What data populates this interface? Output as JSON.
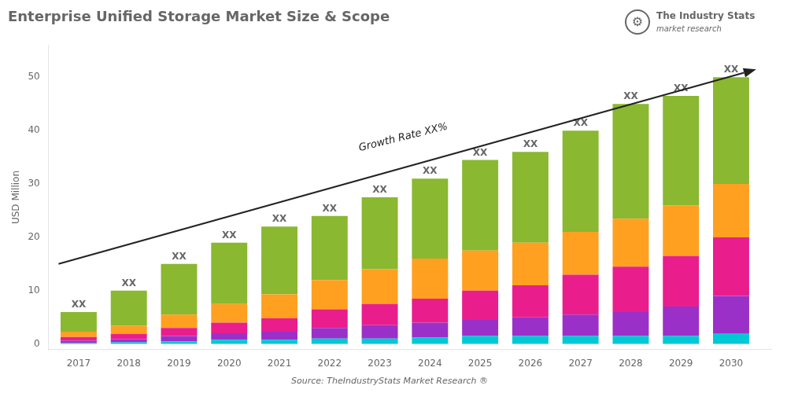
{
  "chart_data": {
    "type": "bar",
    "title": "Enterprise Unified Storage Market Size & Scope",
    "ylabel": "USD Million",
    "source": "Source: TheIndustryStats Market Research ®",
    "stacked": true,
    "grid": false,
    "x": [
      2017,
      2018,
      2019,
      2020,
      2021,
      2022,
      2023,
      2024,
      2025,
      2026,
      2027,
      2028,
      2029,
      2030
    ],
    "xlim": [
      2016.4,
      2030.8
    ],
    "xticks": [
      2017,
      2018,
      2019,
      2020,
      2021,
      2022,
      2023,
      2024,
      2025,
      2026,
      2027,
      2028,
      2029,
      2030
    ],
    "ylim": [
      -1,
      56
    ],
    "yticks": [
      0,
      10,
      20,
      30,
      40,
      50
    ],
    "series": [
      {
        "color": "#00c8d4",
        "values": [
          0.2,
          0.3,
          0.5,
          0.8,
          0.8,
          1.0,
          1.0,
          1.2,
          1.5,
          1.5,
          1.5,
          1.5,
          1.5,
          2.0
        ]
      },
      {
        "color": "#9b30c8",
        "values": [
          0.4,
          0.6,
          1.0,
          1.2,
          1.5,
          2.0,
          2.5,
          2.8,
          3.0,
          3.5,
          4.0,
          4.5,
          5.5,
          7.0
        ]
      },
      {
        "color": "#e91e8c",
        "values": [
          0.7,
          1.0,
          1.5,
          2.0,
          2.5,
          3.5,
          4.0,
          4.5,
          5.5,
          6.0,
          7.5,
          8.5,
          9.5,
          11.0
        ]
      },
      {
        "color": "#ffa020",
        "values": [
          1.0,
          1.5,
          2.5,
          3.5,
          4.5,
          5.5,
          6.5,
          7.5,
          7.5,
          8.0,
          8.0,
          9.0,
          9.5,
          10.0
        ]
      },
      {
        "color": "#8ab830",
        "values": [
          3.7,
          6.6,
          9.5,
          11.5,
          12.7,
          12.0,
          13.5,
          15.0,
          17.0,
          17.0,
          19.0,
          21.5,
          20.5,
          20.0
        ],
        "value_labels": [
          "XX",
          "XX",
          "XX",
          "XX",
          "XX",
          "XX",
          "XX",
          "XX",
          "XX",
          "XX",
          "XX",
          "XX",
          "XX",
          "XX"
        ]
      }
    ],
    "annotations": [
      {
        "type": "arrow",
        "x": [
          2016.6,
          2030.5
        ],
        "y": [
          15.0,
          51.5
        ]
      },
      {
        "text": "Growth Rate XX%",
        "x": 2023.5,
        "y": 37.5
      }
    ],
    "logo": [
      "⚙",
      "The Industry Stats",
      "market research"
    ]
  }
}
